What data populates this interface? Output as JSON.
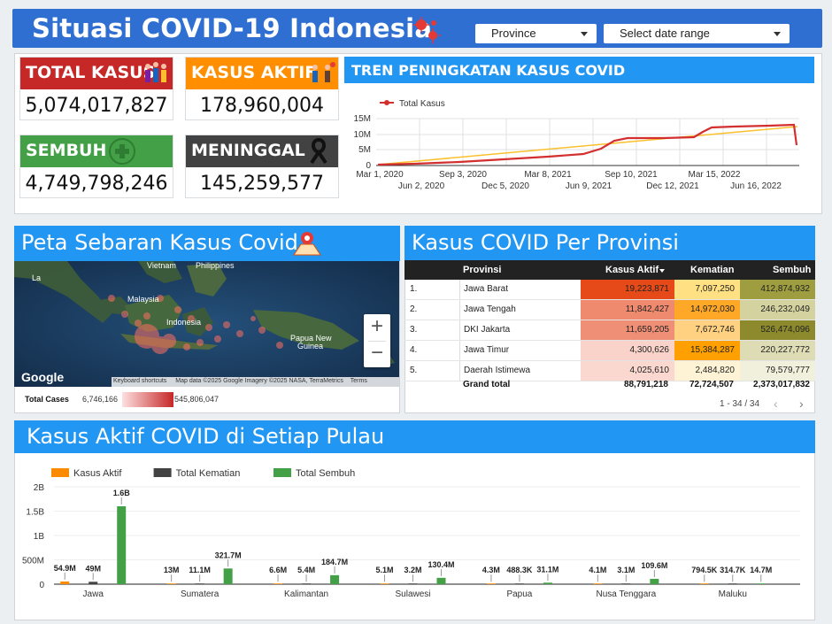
{
  "header": {
    "title": "Situasi COVID-19 Indonesia",
    "province_label": "Province",
    "date_label": "Select date range"
  },
  "stats": {
    "total": {
      "label": "TOTAL KASUS",
      "value": "5,074,017,827",
      "color": "#c62828"
    },
    "aktif": {
      "label": "KASUS AKTIF",
      "value": "178,960,004",
      "color": "#ff8f00"
    },
    "sembuh": {
      "label": "SEMBUH",
      "value": "4,749,798,246",
      "color": "#43a047"
    },
    "meninggal": {
      "label": "MENINGGAL",
      "value": "145,259,577",
      "color": "#424242"
    }
  },
  "trend": {
    "title": "TREN PENINGKATAN KASUS COVID",
    "legend": "Total Kasus",
    "y_ticks": [
      "15M",
      "10M",
      "5M",
      "0"
    ],
    "x_ticks_top": [
      "Mar 1, 2020",
      "Sep 3, 2020",
      "Mar 8, 2021",
      "Sep 10, 2021",
      "Mar 15, 2022"
    ],
    "x_ticks_bottom": [
      "Jun 2, 2020",
      "Dec 5, 2020",
      "Jun 9, 2021",
      "Dec 12, 2021",
      "Jun 16, 2022"
    ],
    "line_color": "#d32f2f",
    "trend_color": "#fbc02d"
  },
  "map": {
    "title": "Peta Sebaran Kasus Covid",
    "labels": {
      "vietnam": "Vietnam",
      "philippines": "Philippines",
      "malaysia": "Malaysia",
      "indonesia": "Indonesia",
      "papua": "Papua New\nGuinea"
    },
    "google": "Google",
    "footer": {
      "shortcuts": "Keyboard shortcuts",
      "mapdata": "Map data ©2025 Google Imagery ©2025 NASA, TerraMetrics",
      "terms": "Terms"
    },
    "zoom_in": "+",
    "zoom_out": "−",
    "legend": {
      "label": "Total Cases",
      "min": "6,746,166",
      "max": "545,806,047"
    }
  },
  "province": {
    "title": "Kasus COVID Per Provinsi",
    "headers": {
      "provinsi": "Provinsi",
      "aktif": "Kasus Aktif",
      "kematian": "Kematian",
      "sembuh": "Sembuh"
    },
    "rows": [
      {
        "no": "1.",
        "name": "Jawa Barat",
        "aktif": "19,223,871",
        "kematian": "7,097,250",
        "sembuh": "412,874,932",
        "c1": "#e64a19",
        "c2": "#ffe082",
        "c3": "#9e9d40"
      },
      {
        "no": "2.",
        "name": "Jawa Tengah",
        "aktif": "11,842,427",
        "kematian": "14,972,030",
        "sembuh": "246,232,049",
        "c1": "#ef8a6f",
        "c2": "#ffa726",
        "c3": "#d4d3a0"
      },
      {
        "no": "3.",
        "name": "DKI Jakarta",
        "aktif": "11,659,205",
        "kematian": "7,672,746",
        "sembuh": "526,474,096",
        "c1": "#ef8f75",
        "c2": "#ffd180",
        "c3": "#8d8a2e"
      },
      {
        "no": "4.",
        "name": "Jawa Timur",
        "aktif": "4,300,626",
        "kematian": "15,384,287",
        "sembuh": "220,227,772",
        "c1": "#f9d3c9",
        "c2": "#ffa000",
        "c3": "#dedcb5"
      },
      {
        "no": "5.",
        "name": "Daerah Istimewa",
        "aktif": "4,025,610",
        "kematian": "2,484,820",
        "sembuh": "79,579,777",
        "c1": "#fad8cf",
        "c2": "#fff3d6",
        "c3": "#f1f0dc"
      }
    ],
    "grand": {
      "label": "Grand total",
      "aktif": "88,791,218",
      "kematian": "72,724,507",
      "sembuh": "2,373,017,832"
    },
    "pager": "1 - 34 / 34"
  },
  "chart_data": {
    "type": "bar",
    "title": "Kasus Aktif COVID di Setiap Pulau",
    "categories": [
      "Jawa",
      "Sumatera",
      "Kalimantan",
      "Sulawesi",
      "Papua",
      "Nusa Tenggara",
      "Maluku"
    ],
    "series": [
      {
        "name": "Kasus Aktif",
        "color": "#fb8c00",
        "values": [
          54.9,
          13,
          6.6,
          5.1,
          4.3,
          4.1,
          0.7945
        ],
        "labels": [
          "54.9M",
          "13M",
          "6.6M",
          "5.1M",
          "4.3M",
          "4.1M",
          "794.5K"
        ]
      },
      {
        "name": "Total Kematian",
        "color": "#424242",
        "values": [
          49,
          11.1,
          5.4,
          3.2,
          0.4883,
          3.1,
          0.3147
        ],
        "labels": [
          "49M",
          "11.1M",
          "5.4M",
          "3.2M",
          "488.3K",
          "3.1M",
          "314.7K"
        ]
      },
      {
        "name": "Total Sembuh",
        "color": "#43a047",
        "values": [
          1600,
          321.7,
          184.7,
          130.4,
          31.1,
          109.6,
          14.7
        ],
        "labels": [
          "1.6B",
          "321.7M",
          "184.7M",
          "130.4M",
          "31.1M",
          "109.6M",
          "14.7M"
        ]
      }
    ],
    "y_ticks": [
      "2B",
      "1.5B",
      "1B",
      "500M",
      "0"
    ],
    "ylim": [
      0,
      2000
    ],
    "legend_position": "top-left"
  }
}
